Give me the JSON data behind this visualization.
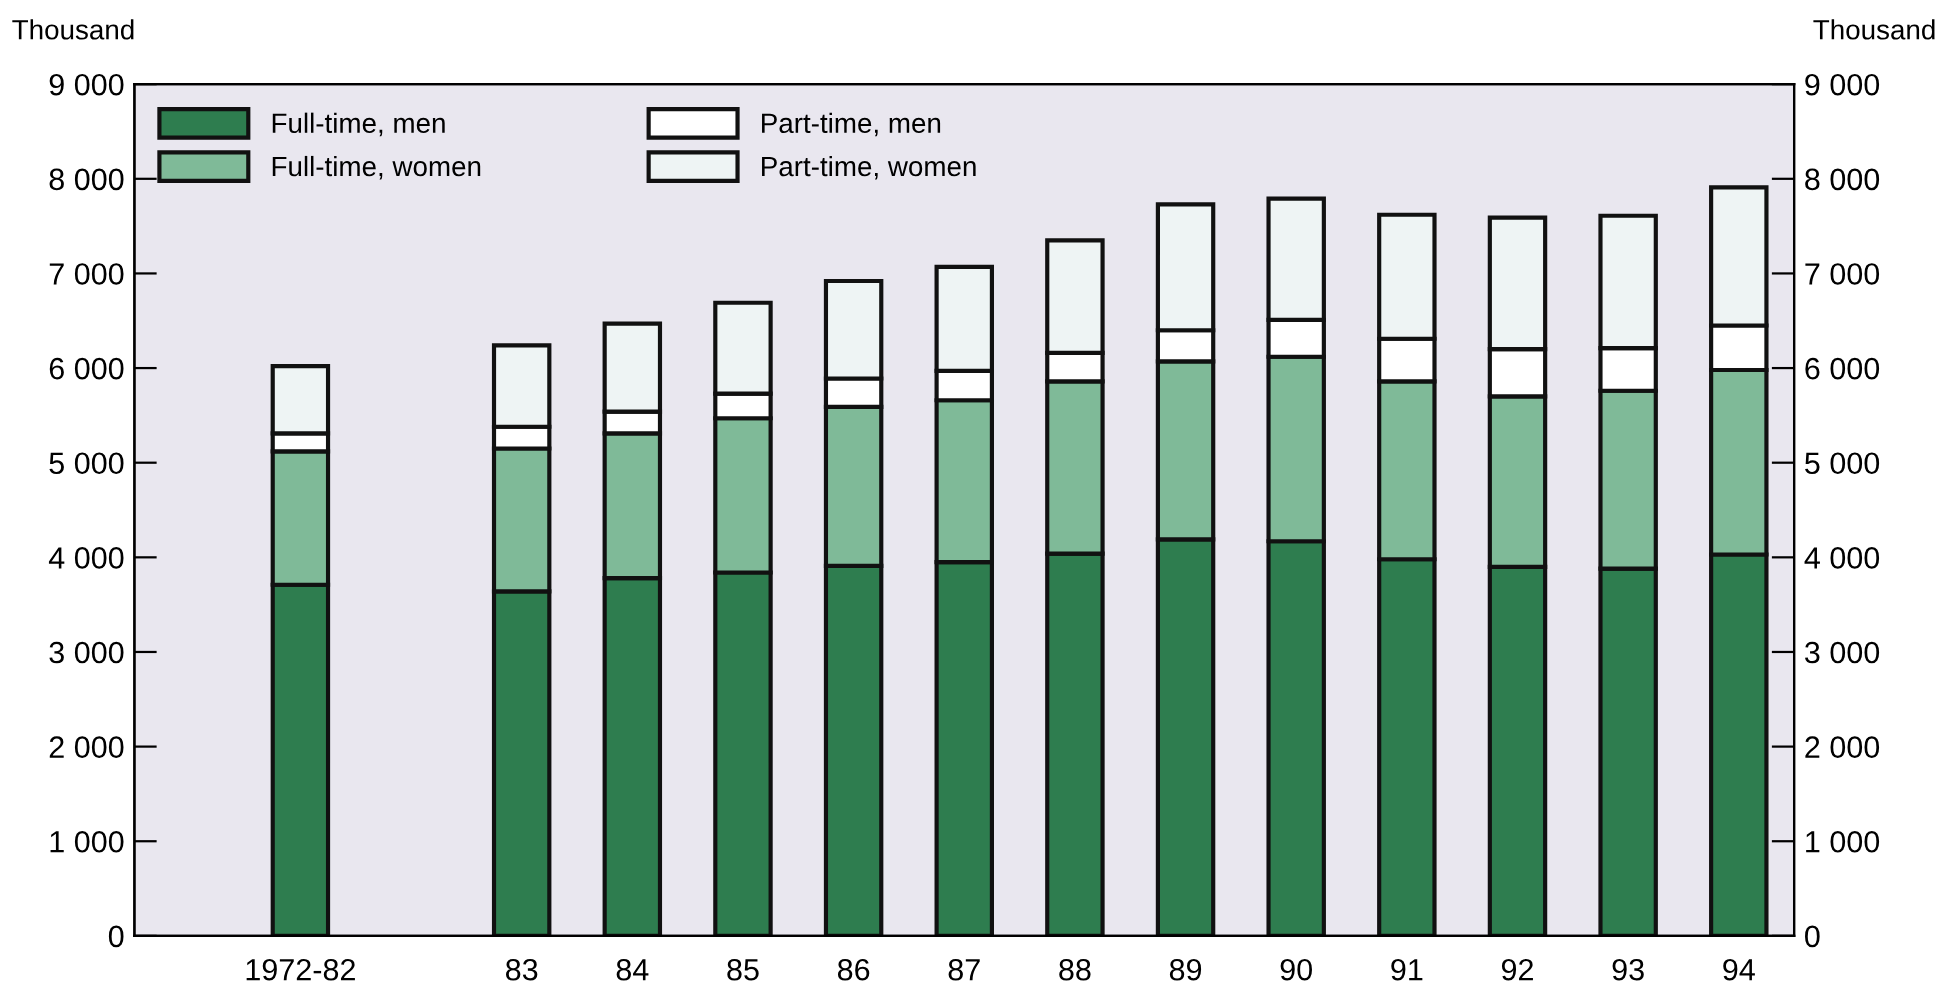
{
  "chart_data": {
    "type": "bar",
    "stacked": true,
    "ylabel": "Thousand",
    "y2label": "Thousand",
    "categories": [
      null,
      "1972-82",
      null,
      "83",
      "84",
      "85",
      "86",
      "87",
      "88",
      "89",
      "90",
      "91",
      "92",
      "93",
      "94"
    ],
    "series": [
      {
        "name": "Full-time, men",
        "color": "#2e7d4f",
        "values": [
          null,
          3710,
          null,
          3640,
          3780,
          3840,
          3910,
          3950,
          4040,
          4190,
          4170,
          3980,
          3900,
          3880,
          4030
        ]
      },
      {
        "name": "Full-time, women",
        "color": "#7fba98",
        "values": [
          null,
          1410,
          null,
          1510,
          1530,
          1630,
          1680,
          1710,
          1820,
          1880,
          1950,
          1880,
          1800,
          1880,
          1950
        ]
      },
      {
        "name": "Part-time, men",
        "color": "#ffffff",
        "values": [
          null,
          190,
          null,
          230,
          230,
          260,
          300,
          310,
          300,
          330,
          390,
          450,
          500,
          450,
          470
        ]
      },
      {
        "name": "Part-time, women",
        "color": "#eef4f4",
        "values": [
          null,
          710,
          null,
          860,
          930,
          960,
          1030,
          1100,
          1190,
          1330,
          1280,
          1310,
          1390,
          1400,
          1460
        ]
      }
    ],
    "ylim": [
      0,
      9000
    ],
    "yticks": [
      0,
      {
        "value": 1000,
        "label": "1 000"
      },
      {
        "value": 2000,
        "label": "2 000"
      },
      {
        "value": 3000,
        "label": "3 000"
      },
      {
        "value": 4000,
        "label": "4 000"
      },
      {
        "value": 5000,
        "label": "5 000"
      },
      {
        "value": 6000,
        "label": "6 000"
      },
      {
        "value": 7000,
        "label": "7 000"
      },
      {
        "value": 8000,
        "label": "8 000"
      },
      {
        "value": 9000,
        "label": "9 000"
      }
    ],
    "y2lim": [
      0,
      9000
    ],
    "y2ticks": [
      0,
      {
        "value": 1000,
        "label": "1 000"
      },
      {
        "value": 2000,
        "label": "2 000"
      },
      {
        "value": 3000,
        "label": "3 000"
      },
      {
        "value": 4000,
        "label": "4 000"
      },
      {
        "value": 5000,
        "label": "5 000"
      },
      {
        "value": 6000,
        "label": "6 000"
      },
      {
        "value": 7000,
        "label": "7 000"
      },
      {
        "value": 8000,
        "label": "8 000"
      },
      {
        "value": 9000,
        "label": "9 000"
      }
    ],
    "legend": "top left",
    "grid": false
  }
}
